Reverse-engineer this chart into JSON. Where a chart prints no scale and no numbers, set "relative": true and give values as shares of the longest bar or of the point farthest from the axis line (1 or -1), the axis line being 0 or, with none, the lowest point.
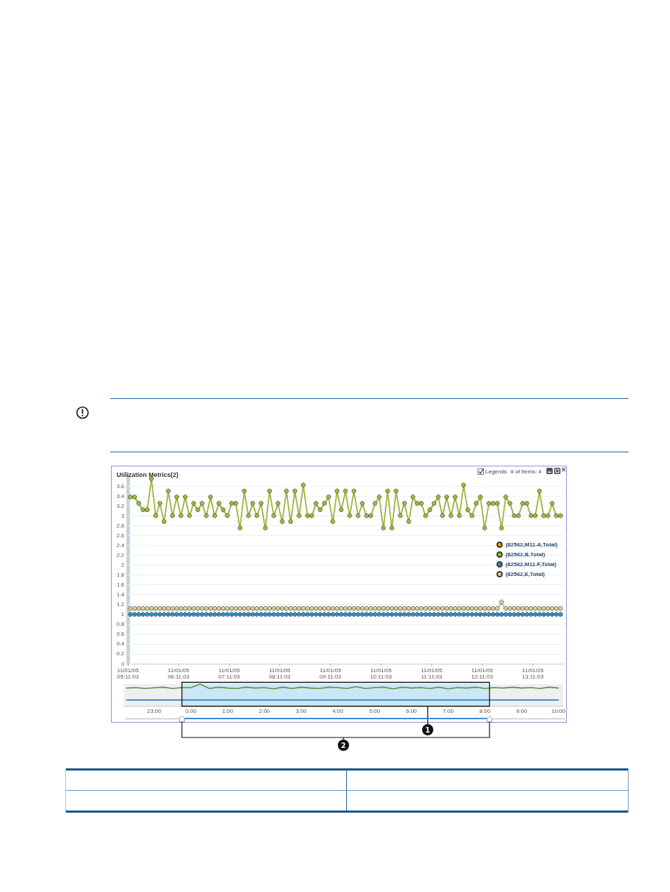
{
  "chart_data": [
    {
      "type": "line",
      "title": "Utilization Metrics(2)",
      "x": [
        "--11-01T05:14",
        "--11-01T05:19",
        "--11-01T05:24",
        "--11-01T05:29",
        "--11-01T05:34",
        "--11-01T05:39",
        "--11-01T05:44",
        "--11-01T05:49",
        "--11-01T05:54",
        "--11-01T05:59",
        "--11-01T06:04",
        "--11-01T06:09",
        "--11-01T06:14",
        "--11-01T06:19",
        "--11-01T06:24",
        "--11-01T06:29",
        "--11-01T06:34",
        "--11-01T06:39",
        "--11-01T06:44",
        "--11-01T06:49",
        "--11-01T06:54",
        "--11-01T06:59",
        "--11-01T07:04",
        "--11-01T07:09",
        "--11-01T07:14",
        "--11-01T07:19",
        "--11-01T07:24",
        "--11-01T07:29",
        "--11-01T07:34",
        "--11-01T07:39",
        "--11-01T07:44",
        "--11-01T07:49",
        "--11-01T07:54",
        "--11-01T07:59",
        "--11-01T08:04",
        "--11-01T08:09",
        "--11-01T08:14",
        "--11-01T08:19",
        "--11-01T08:24",
        "--11-01T08:29",
        "--11-01T08:34",
        "--11-01T08:39",
        "--11-01T08:44",
        "--11-01T08:49",
        "--11-01T08:54",
        "--11-01T08:59",
        "--11-01T09:04",
        "--11-01T09:09",
        "--11-01T09:14",
        "--11-01T09:19",
        "--11-01T09:24",
        "--11-01T09:29",
        "--11-01T09:34",
        "--11-01T09:39",
        "--11-01T09:44",
        "--11-01T09:49",
        "--11-01T09:54",
        "--11-01T09:59",
        "--11-01T10:04",
        "--11-01T10:09",
        "--11-01T10:14",
        "--11-01T10:19",
        "--11-01T10:24",
        "--11-01T10:29",
        "--11-01T10:34",
        "--11-01T10:39",
        "--11-01T10:44",
        "--11-01T10:49",
        "--11-01T10:54",
        "--11-01T10:59",
        "--11-01T11:04",
        "--11-01T11:09",
        "--11-01T11:14",
        "--11-01T11:19",
        "--11-01T11:24",
        "--11-01T11:29",
        "--11-01T11:34",
        "--11-01T11:39",
        "--11-01T11:44",
        "--11-01T11:49",
        "--11-01T11:54",
        "--11-01T11:59",
        "--11-01T12:04",
        "--11-01T12:09",
        "--11-01T12:14",
        "--11-01T12:19",
        "--11-01T12:24",
        "--11-01T12:29",
        "--11-01T12:34",
        "--11-01T12:39",
        "--11-01T12:44",
        "--11-01T12:49",
        "--11-01T12:54",
        "--11-01T12:59",
        "--11-01T13:04",
        "--11-01T13:09",
        "--11-01T13:14",
        "--11-01T13:19",
        "--11-01T13:24",
        "--11-01T13:29",
        "--11-01T13:34",
        "--11-01T13:39",
        "--11-01T13:44"
      ],
      "xlim": [
        "--11-01T05:11",
        "--11-01T13:48"
      ],
      "xticks": [
        {
          "value": "--11-01T05:11:03",
          "label": "11/01/05\n05:11:03"
        },
        {
          "value": "--11-01T06:11:03",
          "label": "11/01/05\n06:11:03"
        },
        {
          "value": "--11-01T07:11:03",
          "label": "11/01/05\n07:11:03"
        },
        {
          "value": "--11-01T08:11:03",
          "label": "11/01/05\n08:11:03"
        },
        {
          "value": "--11-01T09:11:03",
          "label": "11/01/05\n09:11:03"
        },
        {
          "value": "--11-01T10:11:03",
          "label": "11/01/05\n10:11:03"
        },
        {
          "value": "--11-01T11:11:03",
          "label": "11/01/05\n11:11:03"
        },
        {
          "value": "--11-01T12:11:03",
          "label": "11/01/05\n12:11:03"
        },
        {
          "value": "--11-01T13:11:03",
          "label": "11/01/05\n13:11:03"
        }
      ],
      "ylim": [
        0,
        3.8
      ],
      "yticks": [
        0,
        0.2,
        0.4,
        0.6,
        0.8,
        1,
        1.2,
        1.4,
        1.6,
        1.8,
        2,
        2.2,
        2.4,
        2.6,
        2.8,
        3,
        3.2,
        3.4,
        3.6
      ],
      "grid": "y",
      "legend": "right",
      "marker": "circle",
      "line_style": "solid",
      "annotations": [
        "Legends",
        "# of Items: 4"
      ],
      "series": [
        {
          "name": "(82562,M11-A,Total)",
          "color": "#f0921e",
          "values": [
            null,
            null,
            null,
            null,
            null,
            null,
            null,
            null,
            null,
            null,
            null,
            null,
            null,
            null,
            null,
            null,
            null,
            null,
            null,
            null,
            null,
            null,
            null,
            null,
            null,
            null,
            null,
            null,
            null,
            null,
            null,
            null,
            null,
            null,
            null,
            null,
            null,
            null,
            null,
            null,
            null,
            null,
            null,
            null,
            null,
            null,
            null,
            null,
            null,
            null,
            null,
            null,
            null,
            null,
            null,
            null,
            null,
            null,
            null,
            null,
            null,
            null,
            null,
            null,
            null,
            null,
            null,
            null,
            null,
            null,
            null,
            null,
            null,
            null,
            null,
            null,
            null,
            null,
            null,
            null,
            null,
            null,
            null,
            null,
            null,
            null,
            null,
            null,
            null,
            null,
            null,
            null,
            null,
            null,
            null,
            null,
            null,
            null,
            null,
            null,
            null,
            null,
            null
          ]
        },
        {
          "name": "(82562,B,Total)",
          "color": "#9cba3c",
          "values": [
            3.38,
            3.38,
            3.25,
            3.12,
            3.12,
            3.75,
            3.0,
            3.25,
            2.88,
            3.5,
            3.0,
            3.38,
            3.0,
            3.38,
            3.0,
            3.25,
            3.12,
            3.25,
            3.0,
            3.38,
            3.0,
            3.25,
            3.12,
            3.0,
            3.25,
            3.25,
            2.75,
            3.5,
            3.0,
            3.25,
            3.0,
            3.25,
            2.75,
            3.5,
            3.0,
            3.25,
            2.88,
            3.5,
            2.88,
            3.5,
            3.0,
            3.62,
            3.0,
            3.0,
            3.25,
            3.12,
            3.25,
            3.38,
            2.88,
            3.5,
            3.12,
            3.5,
            3.0,
            3.5,
            3.0,
            3.25,
            3.0,
            3.0,
            3.25,
            3.38,
            2.75,
            3.5,
            2.75,
            3.5,
            3.0,
            3.25,
            2.88,
            3.38,
            3.25,
            3.25,
            3.0,
            3.12,
            3.25,
            3.38,
            3.0,
            3.38,
            3.0,
            3.38,
            3.0,
            3.62,
            3.12,
            3.0,
            3.25,
            3.38,
            2.75,
            3.25,
            3.25,
            3.25,
            2.75,
            3.38,
            3.25,
            3.0,
            3.0,
            3.25,
            3.25,
            3.0,
            3.0,
            3.5,
            3.0,
            3.0,
            3.25,
            3.0,
            3.0
          ]
        },
        {
          "name": "(82562,M11-F,Total)",
          "color": "#2b8ed6",
          "values": [
            1,
            1,
            1,
            1,
            1,
            1,
            1,
            1,
            1,
            1,
            1,
            1,
            1,
            1,
            1,
            1,
            1,
            1,
            1,
            1,
            1,
            1,
            1,
            1,
            1,
            1,
            1,
            1,
            1,
            1,
            1,
            1,
            1,
            1,
            1,
            1,
            1,
            1,
            1,
            1,
            1,
            1,
            1,
            1,
            1,
            1,
            1,
            1,
            1,
            1,
            1,
            1,
            1,
            1,
            1,
            1,
            1,
            1,
            1,
            1,
            1,
            1,
            1,
            1,
            1,
            1,
            1,
            1,
            1,
            1,
            1,
            1,
            1,
            1,
            1,
            1,
            1,
            1,
            1,
            1,
            1,
            1,
            1,
            1,
            1,
            1,
            1,
            1,
            1,
            1,
            1,
            1,
            1,
            1,
            1,
            1,
            1,
            1,
            1,
            1,
            1,
            1,
            1
          ]
        },
        {
          "name": "(82562,E,Total)",
          "color": "#d3cf9e",
          "values": [
            1.12,
            1.12,
            1.12,
            1.12,
            1.12,
            1.12,
            1.12,
            1.12,
            1.12,
            1.12,
            1.12,
            1.12,
            1.12,
            1.12,
            1.12,
            1.12,
            1.12,
            1.12,
            1.12,
            1.12,
            1.12,
            1.12,
            1.12,
            1.12,
            1.12,
            1.12,
            1.12,
            1.12,
            1.12,
            1.12,
            1.12,
            1.12,
            1.12,
            1.12,
            1.12,
            1.12,
            1.12,
            1.12,
            1.12,
            1.12,
            1.12,
            1.12,
            1.12,
            1.12,
            1.12,
            1.12,
            1.12,
            1.12,
            1.12,
            1.12,
            1.12,
            1.12,
            1.12,
            1.12,
            1.12,
            1.12,
            1.12,
            1.12,
            1.12,
            1.12,
            1.12,
            1.12,
            1.12,
            1.12,
            1.12,
            1.12,
            1.12,
            1.12,
            1.12,
            1.12,
            1.12,
            1.12,
            1.12,
            1.12,
            1.12,
            1.12,
            1.12,
            1.12,
            1.12,
            1.12,
            1.12,
            1.12,
            1.12,
            1.12,
            1.12,
            1.12,
            1.12,
            1.12,
            1.25,
            1.12,
            1.12,
            1.12,
            1.12,
            1.12,
            1.12,
            1.12,
            1.12,
            1.12,
            1.12,
            1.12,
            1.12,
            1.12,
            1.12
          ]
        }
      ]
    },
    {
      "type": "line",
      "relative": true,
      "x": [
        "--10-31T22:15",
        "--10-31T22:30",
        "--10-31T22:45",
        "--10-31T23:00",
        "--10-31T23:15",
        "--10-31T23:30",
        "--10-31T23:45",
        "--11-01T00:00",
        "--11-01T00:15",
        "--11-01T00:30",
        "--11-01T00:45",
        "--11-01T01:00",
        "--11-01T01:15",
        "--11-01T01:30",
        "--11-01T01:45",
        "--11-01T02:00",
        "--11-01T02:15",
        "--11-01T02:30",
        "--11-01T02:45",
        "--11-01T03:00",
        "--11-01T03:15",
        "--11-01T03:30",
        "--11-01T03:45",
        "--11-01T04:00",
        "--11-01T04:15",
        "--11-01T04:30",
        "--11-01T04:45",
        "--11-01T05:00",
        "--11-01T05:15",
        "--11-01T05:30",
        "--11-01T05:45",
        "--11-01T06:00",
        "--11-01T06:15",
        "--11-01T06:30",
        "--11-01T06:45",
        "--11-01T07:00",
        "--11-01T07:15",
        "--11-01T07:30",
        "--11-01T07:45",
        "--11-01T08:00",
        "--11-01T08:15",
        "--11-01T08:30",
        "--11-01T08:45",
        "--11-01T09:00",
        "--11-01T09:15",
        "--11-01T09:30",
        "--11-01T09:45",
        "--11-01T10:00"
      ],
      "xlim": [
        "--10-31T22:10",
        "--11-01T10:08"
      ],
      "xticks": [
        {
          "value": "--10-31T23:00",
          "label": "23:00"
        },
        {
          "value": "--11-01T00:00",
          "label": "0:00"
        },
        {
          "value": "--11-01T01:00",
          "label": "1:00"
        },
        {
          "value": "--11-01T02:00",
          "label": "2:00"
        },
        {
          "value": "--11-01T03:00",
          "label": "3:00"
        },
        {
          "value": "--11-01T04:00",
          "label": "4:00"
        },
        {
          "value": "--11-01T05:00",
          "label": "5:00"
        },
        {
          "value": "--11-01T06:00",
          "label": "6:00"
        },
        {
          "value": "--11-01T07:00",
          "label": "7:00"
        },
        {
          "value": "--11-01T08:00",
          "label": "8:00"
        },
        {
          "value": "--11-01T09:00",
          "label": "9:00"
        },
        {
          "value": "--11-01T10:00",
          "label": "10:00"
        }
      ],
      "tick_labels": "x",
      "marker": "none",
      "line_style": "solid",
      "bands": [
        {
          "axis": "x",
          "from": "--10-31T23:45",
          "to": "--11-01T08:06",
          "color": "#c4e5f8"
        }
      ],
      "annotations": [
        "1",
        "2"
      ],
      "series": [
        {
          "color": "#5e8f3e",
          "values": [
            0.82,
            0.84,
            0.8,
            0.83,
            0.86,
            0.8,
            0.84,
            0.84,
            1,
            0.8,
            0.86,
            0.82,
            0.8,
            0.86,
            0.82,
            0.84,
            0.78,
            0.86,
            0.8,
            0.86,
            0.82,
            0.8,
            0.86,
            0.84,
            0.8,
            0.88,
            0.8,
            0.84,
            0.86,
            0.78,
            0.86,
            0.82,
            0.84,
            0.8,
            0.86,
            0.78,
            0.84,
            0.82,
            0.86,
            0.8,
            0.84,
            0.82,
            0.86,
            0.82,
            0.84,
            0.8,
            0.86,
            0.82
          ]
        },
        {
          "color": "#1f7fc0",
          "values": [
            0.27,
            0.27,
            0.27,
            0.27,
            0.27,
            0.27,
            0.27,
            0.27,
            0.27,
            0.27,
            0.27,
            0.27,
            0.27,
            0.27,
            0.27,
            0.27,
            0.27,
            0.27,
            0.27,
            0.27,
            0.27,
            0.27,
            0.27,
            0.27,
            0.27,
            0.27,
            0.27,
            0.27,
            0.27,
            0.27,
            0.27,
            0.27,
            0.27,
            0.27,
            0.27,
            0.27,
            0.27,
            0.27,
            0.27,
            0.27,
            0.27,
            0.27,
            0.27,
            0.27,
            0.27,
            0.27,
            0.27,
            0.27
          ]
        }
      ]
    }
  ]
}
